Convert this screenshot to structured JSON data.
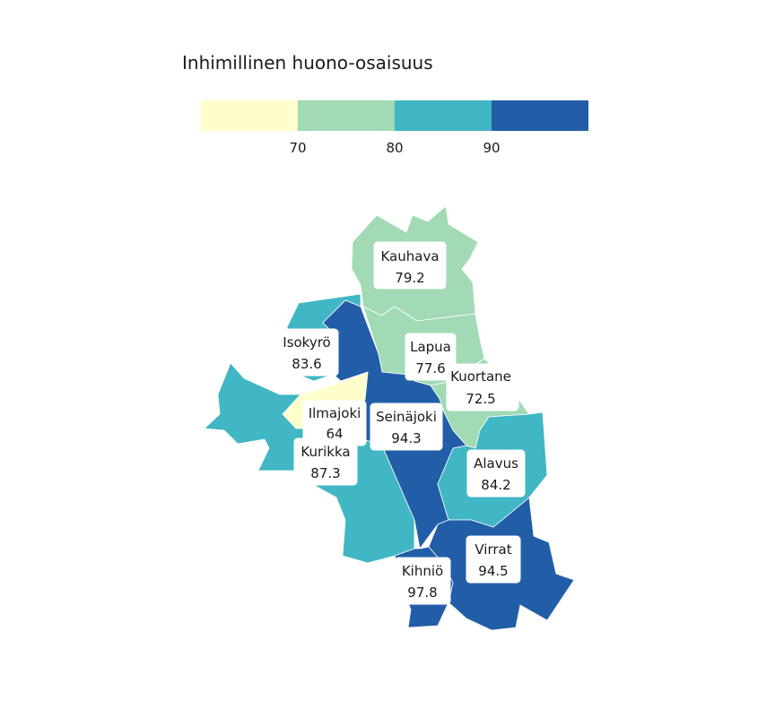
{
  "legend": {
    "title": "Inhimillinen huono-osaisuus",
    "breaks": [
      70,
      80,
      90
    ],
    "tick_labels": [
      "70",
      "80",
      "90"
    ],
    "colors": [
      "#ffffcc",
      "#a1dab4",
      "#41b6c4",
      "#225ea8"
    ]
  },
  "municipalities": [
    {
      "name": "Kauhava",
      "value": 79.2,
      "value_label": "79.2"
    },
    {
      "name": "Isokyrö",
      "value": 83.6,
      "value_label": "83.6"
    },
    {
      "name": "Lapua",
      "value": 77.6,
      "value_label": "77.6"
    },
    {
      "name": "Kuortane",
      "value": 72.5,
      "value_label": "72.5"
    },
    {
      "name": "Ilmajoki",
      "value": 64,
      "value_label": "64"
    },
    {
      "name": "Seinäjoki",
      "value": 94.3,
      "value_label": "94.3"
    },
    {
      "name": "Kurikka",
      "value": 87.3,
      "value_label": "87.3"
    },
    {
      "name": "Alavus",
      "value": 84.2,
      "value_label": "84.2"
    },
    {
      "name": "Virrat",
      "value": 94.5,
      "value_label": "94.5"
    },
    {
      "name": "Kihniö",
      "value": 97.8,
      "value_label": "97.8"
    }
  ]
}
